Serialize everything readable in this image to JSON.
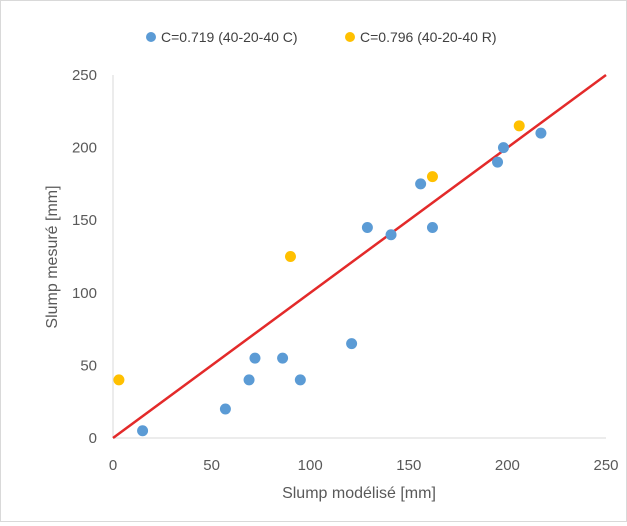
{
  "chart_data": {
    "type": "scatter",
    "title": "",
    "xlabel": "Slump modélisé [mm]",
    "ylabel": "Slump mesuré [mm]",
    "xlim": [
      0,
      250
    ],
    "ylim": [
      0,
      250
    ],
    "xticks": [
      "0",
      "50",
      "100",
      "150",
      "200",
      "250"
    ],
    "yticks": [
      "0",
      "50",
      "100",
      "150",
      "200",
      "250"
    ],
    "grid": false,
    "legend_position": "top",
    "series": [
      {
        "name": "C=0.719 (40-20-40 C)",
        "color": "#5b9bd5",
        "points": [
          {
            "x": 15,
            "y": 5
          },
          {
            "x": 57,
            "y": 20
          },
          {
            "x": 69,
            "y": 40
          },
          {
            "x": 72,
            "y": 55
          },
          {
            "x": 86,
            "y": 55
          },
          {
            "x": 95,
            "y": 40
          },
          {
            "x": 121,
            "y": 65
          },
          {
            "x": 129,
            "y": 145
          },
          {
            "x": 141,
            "y": 140
          },
          {
            "x": 156,
            "y": 175
          },
          {
            "x": 162,
            "y": 145
          },
          {
            "x": 195,
            "y": 190
          },
          {
            "x": 198,
            "y": 200
          },
          {
            "x": 217,
            "y": 210
          }
        ]
      },
      {
        "name": "C=0.796 (40-20-40 R)",
        "color": "#ffc000",
        "points": [
          {
            "x": 3,
            "y": 40
          },
          {
            "x": 90,
            "y": 125
          },
          {
            "x": 162,
            "y": 180
          },
          {
            "x": 206,
            "y": 215
          }
        ]
      }
    ],
    "reference_line": {
      "x": [
        0,
        250
      ],
      "y": [
        0,
        250
      ],
      "color": "#e32a2a"
    }
  }
}
